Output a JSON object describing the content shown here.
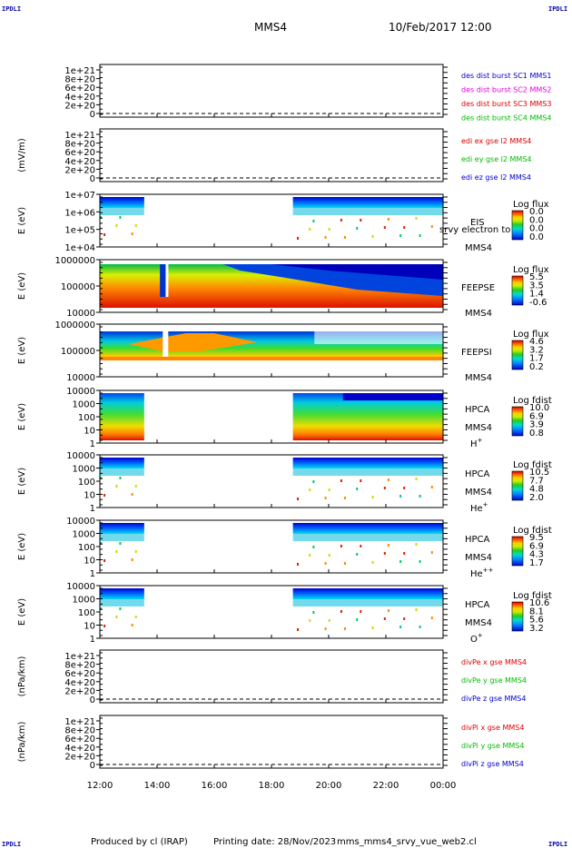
{
  "header": {
    "spacecraft": "MMS4",
    "date": "10/Feb/2017 12:00",
    "corner_left_top": "IPDLI",
    "corner_right_top": "IPDLI",
    "corner_left_bottom": "IPDLI",
    "corner_right_bottom": "IPDLI"
  },
  "footer": {
    "produced_by": "Produced by cl (IRAP)",
    "printing_date": "Printing date: 28/Nov/2023",
    "script_name": "mms_mms4_srvy_vue_web2.cl"
  },
  "colors": {
    "red": "#dd0000",
    "magenta": "#dd00dd",
    "green": "#00bb00",
    "blue": "#0000cc"
  },
  "chart_data": {
    "type": "heatmap",
    "x_ticks": [
      "12:00",
      "14:00",
      "16:00",
      "18:00",
      "20:00",
      "22:00",
      "00:00"
    ],
    "x_range_hours": [
      12,
      24
    ],
    "panels": [
      {
        "id": "p1",
        "type": "line",
        "ylabel": "",
        "yticks": [
          "1e+21",
          "8e+20",
          "6e+20",
          "4e+20",
          "2e+20",
          "0"
        ],
        "legend": [
          {
            "text": "des dist burst SC1 MMS1",
            "color": "#0000cc"
          },
          {
            "text": "des dist burst SC2 MMS2",
            "color": "#dd00dd"
          },
          {
            "text": "des dist burst SC3 MMS3",
            "color": "#dd0000"
          },
          {
            "text": "des dist burst SC4 MMS4",
            "color": "#00bb00"
          }
        ]
      },
      {
        "id": "p2",
        "type": "line",
        "ylabel": "(mV/m)",
        "yticks": [
          "1e+21",
          "8e+20",
          "6e+20",
          "4e+20",
          "2e+20",
          "0"
        ],
        "legend": [
          {
            "text": "edi ex gse l2 MMS4",
            "color": "#dd0000"
          },
          {
            "text": "edi ey gse l2 MMS4",
            "color": "#00bb00"
          },
          {
            "text": "edi ez gse l2 MMS4",
            "color": "#0000cc"
          }
        ]
      },
      {
        "id": "p3",
        "type": "heatmap",
        "ylabel": "E (eV)",
        "yticks": [
          "1e+07",
          "1e+06",
          "1e+05",
          "1e+04"
        ],
        "instrument": "EIS",
        "instrument2": "MMS4",
        "overlay_text": "srvy electron to",
        "cbar_title": "Log flux",
        "cbar_values": [
          "0.0",
          "0.0",
          "0.0",
          "0.0"
        ]
      },
      {
        "id": "p4",
        "type": "heatmap",
        "ylabel": "E (eV)",
        "yticks": [
          "1000000",
          "100000",
          "10000"
        ],
        "instrument": "FEEPSE",
        "instrument2": "MMS4",
        "cbar_title": "Log flux",
        "cbar_values": [
          "5.5",
          "3.5",
          "1.4",
          "-0.6"
        ]
      },
      {
        "id": "p5",
        "type": "heatmap",
        "ylabel": "E (eV)",
        "yticks": [
          "1000000",
          "100000",
          "10000"
        ],
        "instrument": "FEEPSI",
        "instrument2": "MMS4",
        "cbar_title": "Log flux",
        "cbar_values": [
          "4.6",
          "3.2",
          "1.7",
          "0.2"
        ]
      },
      {
        "id": "p6",
        "type": "heatmap",
        "ylabel": "E (eV)",
        "yticks": [
          "10000",
          "1000",
          "100",
          "10",
          "1"
        ],
        "instrument": "HPCA",
        "instrument2": "MMS4",
        "species": "H",
        "charge": "+",
        "cbar_title": "Log fdist",
        "cbar_values": [
          "10.0",
          "6.9",
          "3.9",
          "0.8"
        ]
      },
      {
        "id": "p7",
        "type": "heatmap",
        "ylabel": "E (eV)",
        "yticks": [
          "10000",
          "1000",
          "100",
          "10",
          "1"
        ],
        "instrument": "HPCA",
        "instrument2": "MMS4",
        "species": "He",
        "charge": "+",
        "cbar_title": "Log fdist",
        "cbar_values": [
          "10.5",
          "7.7",
          "4.8",
          "2.0"
        ]
      },
      {
        "id": "p8",
        "type": "heatmap",
        "ylabel": "E (eV)",
        "yticks": [
          "10000",
          "1000",
          "100",
          "10",
          "1"
        ],
        "instrument": "HPCA",
        "instrument2": "MMS4",
        "species": "He",
        "charge": "++",
        "cbar_title": "Log fdist",
        "cbar_values": [
          "9.5",
          "6.9",
          "4.3",
          "1.7"
        ]
      },
      {
        "id": "p9",
        "type": "heatmap",
        "ylabel": "E (eV)",
        "yticks": [
          "10000",
          "1000",
          "100",
          "10",
          "1"
        ],
        "instrument": "HPCA",
        "instrument2": "MMS4",
        "species": "O",
        "charge": "+",
        "cbar_title": "Log fdist",
        "cbar_values": [
          "10.6",
          "8.1",
          "5.6",
          "3.2"
        ]
      },
      {
        "id": "p10",
        "type": "line",
        "ylabel": "(nPa/km)",
        "yticks": [
          "1e+21",
          "8e+20",
          "6e+20",
          "4e+20",
          "2e+20",
          "0"
        ],
        "legend": [
          {
            "text": "divPe x gse MMS4",
            "color": "#dd0000"
          },
          {
            "text": "divPe y gse MMS4",
            "color": "#00bb00"
          },
          {
            "text": "divPe z gse MMS4",
            "color": "#0000cc"
          }
        ]
      },
      {
        "id": "p11",
        "type": "line",
        "ylabel": "(nPa/km)",
        "yticks": [
          "1e+21",
          "8e+20",
          "6e+20",
          "4e+20",
          "2e+20",
          "0"
        ],
        "legend": [
          {
            "text": "divPi x gse MMS4",
            "color": "#dd0000"
          },
          {
            "text": "divPi y gse MMS4",
            "color": "#00bb00"
          },
          {
            "text": "divPi z gse MMS4",
            "color": "#0000cc"
          }
        ]
      }
    ]
  }
}
